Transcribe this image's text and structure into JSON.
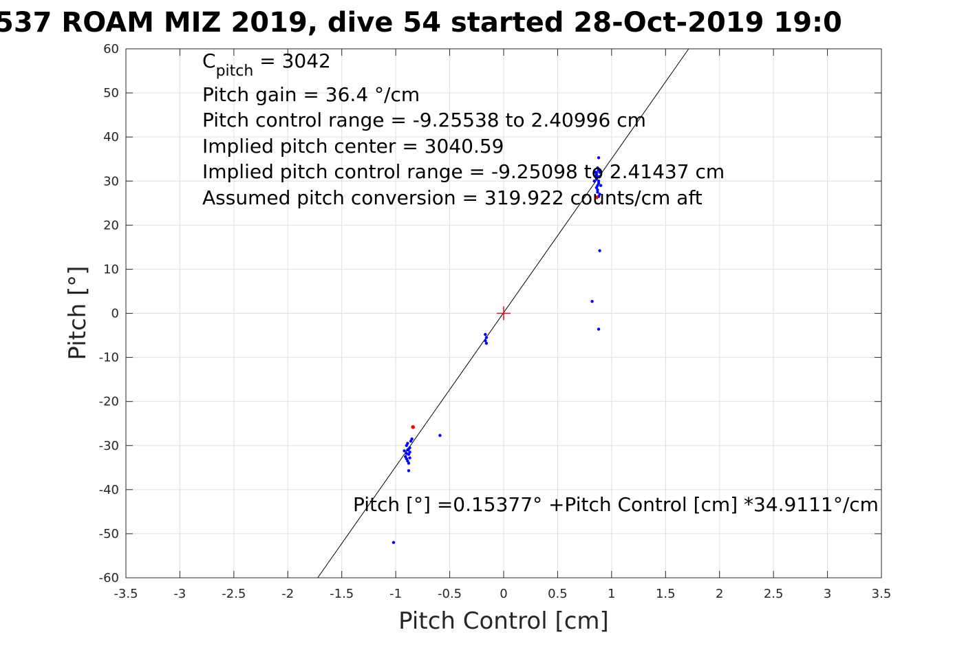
{
  "chart_data": {
    "type": "scatter",
    "title": "537 ROAM MIZ 2019, dive 54 started 28-Oct-2019 19:0",
    "xlabel": "Pitch Control [cm]",
    "ylabel": "Pitch [°]",
    "xlim": [
      -3.5,
      3.5
    ],
    "ylim": [
      -60,
      60
    ],
    "xticks": [
      "-3.5",
      "-3",
      "-2.5",
      "-2",
      "-1.5",
      "-1",
      "-0.5",
      "0",
      "0.5",
      "1",
      "1.5",
      "2",
      "2.5",
      "3",
      "3.5"
    ],
    "yticks": [
      "60",
      "50",
      "40",
      "30",
      "20",
      "10",
      "0",
      "-10",
      "-20",
      "-30",
      "-40",
      "-50",
      "-60"
    ],
    "grid": true,
    "colors": {
      "points": "#0000ff",
      "outliers": "#ff0000",
      "fit_line": "#000000",
      "center_marker": "#ff0000"
    },
    "annotations": {
      "c_pitch_symbol": "C",
      "c_pitch_subscript": "pitch",
      "c_pitch_value": " = 3042",
      "line2": "Pitch gain = 36.4 °/cm",
      "line3": "Pitch control range = -9.25538 to 2.40996 cm",
      "line4": "Implied pitch center = 3040.59",
      "line5": "Implied pitch control range = -9.25098 to 2.41437 cm",
      "line6": "Assumed pitch conversion = 319.922 counts/cm aft",
      "fit_equation": "Pitch [°] =0.15377° +Pitch Control [cm] *34.9111°/cm"
    },
    "fit": {
      "intercept": 0.15377,
      "slope": 34.9111
    },
    "center_marker": [
      0,
      0
    ],
    "series": [
      {
        "name": "",
        "color": "#0000ff",
        "points": [
          [
            0.86,
            32
          ],
          [
            0.87,
            31
          ],
          [
            0.88,
            30
          ],
          [
            0.87,
            29
          ],
          [
            0.86,
            31.5
          ],
          [
            0.88,
            32.5
          ],
          [
            0.87,
            28
          ],
          [
            0.89,
            27
          ],
          [
            0.86,
            30.5
          ],
          [
            0.88,
            29.5
          ],
          [
            0.87,
            33
          ],
          [
            0.85,
            31
          ],
          [
            0.89,
            31
          ],
          [
            0.86,
            28.5
          ],
          [
            0.88,
            26.5
          ],
          [
            0.87,
            27.5
          ],
          [
            0.84,
            30
          ],
          [
            0.9,
            29
          ],
          [
            0.85,
            32
          ],
          [
            0.89,
            32
          ],
          [
            0.88,
            35.3
          ],
          [
            0.89,
            14.2
          ],
          [
            0.82,
            2.7
          ],
          [
            0.88,
            -3.6
          ],
          [
            -0.17,
            -4.8
          ],
          [
            -0.16,
            -5.5
          ],
          [
            -0.17,
            -6.2
          ],
          [
            -0.16,
            -6.8
          ],
          [
            -0.9,
            -30
          ],
          [
            -0.89,
            -31
          ],
          [
            -0.88,
            -32
          ],
          [
            -0.87,
            -30.5
          ],
          [
            -0.9,
            -33
          ],
          [
            -0.89,
            -29.5
          ],
          [
            -0.88,
            -34
          ],
          [
            -0.87,
            -31.5
          ],
          [
            -0.91,
            -32.5
          ],
          [
            -0.86,
            -29
          ],
          [
            -0.88,
            -30.8
          ],
          [
            -0.89,
            -33.5
          ],
          [
            -0.9,
            -31.8
          ],
          [
            -0.87,
            -32.8
          ],
          [
            -0.92,
            -31.2
          ],
          [
            -0.85,
            -28.5
          ],
          [
            -0.88,
            -35.7
          ],
          [
            -0.59,
            -27.7
          ],
          [
            -1.02,
            -52
          ]
        ]
      },
      {
        "name": "",
        "color": "#ff0000",
        "points": [
          [
            -0.84,
            -25.8
          ],
          [
            0.86,
            26.3
          ]
        ]
      }
    ]
  }
}
